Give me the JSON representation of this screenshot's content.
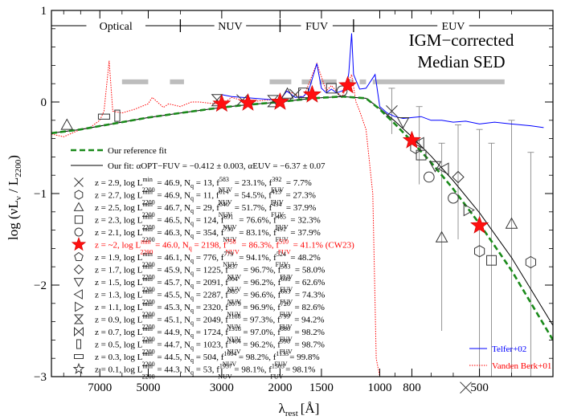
{
  "chart_data": {
    "type": "line",
    "title": "IGM−corrected Median SED",
    "title_lines": [
      "IGM−corrected",
      "Median SED"
    ],
    "xlabel": "λ",
    "xlabel_sub": "rest",
    "xlabel_unit": "[Å]",
    "ylabel": "log (νLν / L2200)",
    "x_scale": "log (reversed, wavelength decreasing to the right)",
    "xlim": [
      9800,
      300
    ],
    "ylim": [
      -3,
      1
    ],
    "grid": false,
    "x_ticks": [
      7000,
      5000,
      3000,
      2000,
      1500,
      1000,
      800,
      500
    ],
    "x_tick_labels": [
      "7000",
      "5000",
      "3000",
      "2000",
      "1500",
      "1000",
      "800",
      "500"
    ],
    "y_ticks": [
      1,
      0,
      -1,
      -2,
      -3
    ],
    "y_tick_labels": [
      "1",
      "0",
      "−1",
      "−2",
      "−3"
    ],
    "bands": [
      {
        "name": "Optical",
        "from": 9800,
        "to": 4000
      },
      {
        "name": "NUV",
        "from": 4000,
        "to": 2000
      },
      {
        "name": "FUV",
        "from": 2000,
        "to": 1200
      },
      {
        "name": "EUV",
        "from": 1200,
        "to": 300
      }
    ],
    "band_separators": [
      4000,
      2000,
      1200
    ],
    "legend_top": [
      {
        "label": "Our reference fit",
        "style": "dashed",
        "color": "#1a8a1a"
      },
      {
        "label": "Our fit: αOPT−FUV = −0.412 ± 0.003, αEUV = −6.37 ± 0.07",
        "style": "solid",
        "color": "#000000"
      }
    ],
    "legend_bottom": [
      {
        "label": "Telfer+02",
        "color": "#0000ff",
        "style": "solid"
      },
      {
        "label": "Vanden Berk+01",
        "color": "#ff0000",
        "style": "dotted"
      }
    ],
    "sample_rows": [
      {
        "marker": "cross",
        "z": "2.9",
        "logL": "46.9",
        "Nq": "13",
        "fnuv_sup": "583",
        "fnuv": "23.1%",
        "ffuv_sup": "392",
        "ffuv": "7.7%",
        "note": ""
      },
      {
        "marker": "hexagon",
        "z": "2.7",
        "logL": "46.9",
        "Nq": "11",
        "fnuv_sup": "614",
        "fnuv": "54.5%",
        "ffuv_sup": "413",
        "ffuv": "27.3%",
        "note": ""
      },
      {
        "marker": "triangle-up",
        "z": "2.5",
        "logL": "46.7",
        "Nq": "29",
        "fnuv_sup": "646",
        "fnuv": "51.7%",
        "ffuv_sup": "434",
        "ffuv": "37.9%",
        "note": ""
      },
      {
        "marker": "square",
        "z": "2.3",
        "logL": "46.5",
        "Nq": "124",
        "fnuv_sup": "691",
        "fnuv": "76.6%",
        "ffuv_sup": "465",
        "ffuv": "32.3%",
        "note": ""
      },
      {
        "marker": "circle",
        "z": "2.1",
        "logL": "46.3",
        "Nq": "354",
        "fnuv_sup": "730",
        "fnuv": "83.1%",
        "ffuv_sup": "491",
        "ffuv": "37.9%",
        "note": ""
      },
      {
        "marker": "star",
        "z": "~2",
        "logL": "46.0",
        "Nq": "2198",
        "fnuv_sup": "758",
        "fnuv": "86.3%",
        "ffuv_sup": "510",
        "ffuv": "41.1%",
        "note": "(CW23)",
        "highlight": true
      },
      {
        "marker": "pentagon",
        "z": "1.9",
        "logL": "46.1",
        "Nq": "776",
        "fnuv_sup": "779",
        "fnuv": "94.1%",
        "ffuv_sup": "524",
        "ffuv": "48.2%",
        "note": ""
      },
      {
        "marker": "diamond",
        "z": "1.7",
        "logL": "45.9",
        "Nq": "1225",
        "fnuv_sup": "837",
        "fnuv": "96.7%",
        "ffuv_sup": "563",
        "ffuv": "58.0%",
        "note": ""
      },
      {
        "marker": "triangle-down",
        "z": "1.5",
        "logL": "45.7",
        "Nq": "2091",
        "fnuv_sup": "904",
        "fnuv": "96.2%",
        "ffuv_sup": "608",
        "ffuv": "62.6%",
        "note": ""
      },
      {
        "marker": "triangle-left",
        "z": "1.3",
        "logL": "45.5",
        "Nq": "2287",
        "fnuv_sup": "985",
        "fnuv": "96.6%",
        "ffuv_sup": "663",
        "ffuv": "74.3%",
        "note": ""
      },
      {
        "marker": "triangle-right",
        "z": "1.1",
        "logL": "45.3",
        "Nq": "2320",
        "fnuv_sup": "1079",
        "fnuv": "96.9%",
        "ffuv_sup": "726",
        "ffuv": "82.6%",
        "note": ""
      },
      {
        "marker": "bowtie-v",
        "z": "0.9",
        "logL": "45.1",
        "Nq": "2049",
        "fnuv_sup": "1188",
        "fnuv": "97.3%",
        "ffuv_sup": "799",
        "ffuv": "94.2%",
        "note": ""
      },
      {
        "marker": "bowtie-h",
        "z": "0.7",
        "logL": "44.9",
        "Nq": "1724",
        "fnuv_sup": "1318",
        "fnuv": "97.0%",
        "ffuv_sup": "886",
        "ffuv": "98.2%",
        "note": ""
      },
      {
        "marker": "tall-rect",
        "z": "0.5",
        "logL": "44.7",
        "Nq": "1023",
        "fnuv_sup": "1484",
        "fnuv": "96.2%",
        "ffuv_sup": "998",
        "ffuv": "98.7%",
        "note": ""
      },
      {
        "marker": "wide-rect",
        "z": "0.3",
        "logL": "44.5",
        "Nq": "504",
        "fnuv_sup": "1684",
        "fnuv": "98.2%",
        "ffuv_sup": "1133",
        "ffuv": "99.8%",
        "note": ""
      },
      {
        "marker": "star-open",
        "z": "0.1",
        "logL": "44.3",
        "Nq": "53",
        "fnuv_sup": "1937",
        "fnuv": "98.1%",
        "ffuv_sup": "1303",
        "ffuv": "98.1%",
        "note": ""
      }
    ],
    "stat_prefix": {
      "z": "z = ",
      "logL": "log L",
      "logL_sub": "2200",
      "logL_sup": "min",
      "eq": " = ",
      "Nq": "N",
      "Nq_sub": "q",
      "f": "f",
      "f_nuv_sub": "NUV",
      "f_fuv_sub": "FUV"
    },
    "series": [
      {
        "name": "Our reference fit",
        "color": "#1a8a1a",
        "style": "dashed",
        "x": [
          9800,
          8000,
          6000,
          5000,
          4000,
          3000,
          2500,
          2000,
          1600,
          1300,
          1100,
          1000,
          900,
          800,
          700,
          600,
          500,
          400,
          300
        ],
        "y": [
          -0.34,
          -0.3,
          -0.22,
          -0.17,
          -0.12,
          -0.06,
          -0.03,
          0.0,
          0.04,
          0.06,
          0.04,
          -0.08,
          -0.24,
          -0.43,
          -0.66,
          -0.95,
          -1.33,
          -1.84,
          -2.6
        ]
      },
      {
        "name": "Our fit",
        "color": "#000000",
        "style": "solid",
        "x": [
          9800,
          8000,
          6000,
          5000,
          4000,
          3000,
          2500,
          2000,
          1600,
          1300,
          1100,
          1000,
          900,
          800,
          700,
          600,
          500,
          400,
          300
        ],
        "y": [
          -0.34,
          -0.3,
          -0.22,
          -0.17,
          -0.12,
          -0.06,
          -0.03,
          0.0,
          0.04,
          0.06,
          0.04,
          -0.07,
          -0.21,
          -0.38,
          -0.59,
          -0.86,
          -1.21,
          -1.7,
          -2.44
        ]
      },
      {
        "name": "Telfer+02",
        "color": "#0000ff",
        "style": "solid",
        "x": [
          3000,
          2800,
          2600,
          2400,
          2200,
          2000,
          1909,
          1800,
          1700,
          1640,
          1549,
          1500,
          1450,
          1400,
          1350,
          1300,
          1260,
          1240,
          1216,
          1200,
          1150,
          1100,
          1033,
          1000,
          950,
          900,
          850,
          800,
          750,
          700,
          650,
          600,
          550,
          500,
          450,
          400,
          350,
          320
        ],
        "y": [
          0.08,
          0.06,
          0.05,
          0.04,
          0.03,
          0.02,
          0.12,
          0.05,
          0.06,
          0.12,
          0.42,
          0.15,
          0.1,
          0.14,
          0.1,
          0.12,
          0.15,
          0.32,
          0.75,
          0.3,
          0.14,
          0.15,
          0.3,
          -0.05,
          -0.12,
          -0.16,
          -0.18,
          -0.17,
          -0.16,
          -0.2,
          -0.2,
          -0.22,
          -0.21,
          -0.24,
          -0.22,
          -0.24,
          -0.26,
          -0.28
        ]
      },
      {
        "name": "Vanden Berk+01",
        "color": "#ff0000",
        "style": "dotted",
        "x": [
          9800,
          9000,
          8000,
          7500,
          7000,
          6800,
          6563,
          6400,
          6000,
          5500,
          5007,
          4861,
          4500,
          4340,
          4000,
          3700,
          3500,
          3000,
          2800,
          2500,
          2200,
          2000,
          1909,
          1700,
          1549,
          1450,
          1400,
          1300,
          1250,
          1216,
          1180,
          1150,
          1100,
          1050,
          1025,
          1000
        ],
        "y": [
          -0.35,
          -0.38,
          -0.3,
          -0.28,
          -0.2,
          -0.1,
          0.45,
          -0.1,
          -0.12,
          -0.08,
          -0.02,
          0.05,
          -0.06,
          -0.02,
          -0.05,
          0.0,
          0.0,
          -0.03,
          0.05,
          0.0,
          0.02,
          0.03,
          0.12,
          0.05,
          0.42,
          0.12,
          0.18,
          0.05,
          0.2,
          0.3,
          0.0,
          -0.1,
          -0.3,
          -1.0,
          -2.8,
          -3.0
        ]
      }
    ],
    "gray_coverage_bars": [
      {
        "from": 6000,
        "to": 5000
      },
      {
        "from": 4300,
        "to": 3900
      },
      {
        "from": 2150,
        "to": 1850
      },
      {
        "from": 1720,
        "to": 1600
      },
      {
        "from": 1520,
        "to": 1350
      },
      {
        "from": 1260,
        "to": 1200
      },
      {
        "from": 1150,
        "to": 1100
      },
      {
        "from": 1050,
        "to": 420
      }
    ],
    "gray_bar_y": 0.22,
    "stars_cw23": {
      "x": [
        3000,
        2500,
        2000,
        1600,
        1250,
        800,
        500
      ],
      "y": [
        -0.02,
        -0.01,
        0.0,
        0.08,
        0.18,
        -0.42,
        -1.35
      ]
    },
    "extra_markers": [
      {
        "marker": "cross",
        "x": 920,
        "y": -0.1
      },
      {
        "marker": "cross",
        "x": 550,
        "y": -3.12
      },
      {
        "marker": "hexagon",
        "x": 780,
        "y": -0.5
      },
      {
        "marker": "hexagon",
        "x": 500,
        "y": -1.63
      },
      {
        "marker": "hexagon",
        "x": 350,
        "y": -1.75
      },
      {
        "marker": "triangle-up",
        "x": 650,
        "y": -1.48
      },
      {
        "marker": "triangle-up",
        "x": 400,
        "y": -1.33
      },
      {
        "marker": "square",
        "x": 750,
        "y": -0.58
      },
      {
        "marker": "square",
        "x": 460,
        "y": -1.73
      },
      {
        "marker": "circle",
        "x": 710,
        "y": -0.82
      },
      {
        "marker": "circle",
        "x": 600,
        "y": -1.05
      },
      {
        "marker": "diamond",
        "x": 580,
        "y": -0.82
      },
      {
        "marker": "triangle-down",
        "x": 850,
        "y": -0.22
      },
      {
        "marker": "triangle-down",
        "x": 680,
        "y": -0.7
      },
      {
        "marker": "triangle-left",
        "x": 760,
        "y": -0.45
      },
      {
        "marker": "triangle-left",
        "x": 640,
        "y": -0.73
      },
      {
        "marker": "triangle-right",
        "x": 540,
        "y": -1.18
      },
      {
        "marker": "bowtie-v",
        "x": 3100,
        "y": 0.02
      },
      {
        "marker": "bowtie-v",
        "x": 2100,
        "y": 0.01
      },
      {
        "marker": "tall-rect",
        "x": 6200,
        "y": -0.15
      },
      {
        "marker": "wide-rect",
        "x": 6800,
        "y": -0.16
      },
      {
        "marker": "triangle-up",
        "x": 8800,
        "y": -0.25
      },
      {
        "marker": "square",
        "x": 1400,
        "y": 0.15
      },
      {
        "marker": "square",
        "x": 1700,
        "y": 0.1
      },
      {
        "marker": "cross",
        "x": 2600,
        "y": 0.02
      },
      {
        "marker": "cross",
        "x": 1800,
        "y": 0.08
      },
      {
        "marker": "circle",
        "x": 1300,
        "y": 0.12
      },
      {
        "marker": "triangle-up",
        "x": 1900,
        "y": 0.09
      }
    ],
    "error_bars": [
      {
        "x": 920,
        "y": -0.1,
        "lo": -0.35,
        "hi": 0.15
      },
      {
        "x": 760,
        "y": -0.45,
        "lo": -0.9,
        "hi": -0.05
      },
      {
        "x": 650,
        "y": -1.48,
        "lo": -2.5,
        "hi": -0.45
      },
      {
        "x": 580,
        "y": -0.82,
        "lo": -1.5,
        "hi": -0.25
      },
      {
        "x": 500,
        "y": -1.63,
        "lo": -3.0,
        "hi": -0.3
      },
      {
        "x": 460,
        "y": -1.73,
        "lo": -3.0,
        "hi": -0.45
      },
      {
        "x": 400,
        "y": -1.33,
        "lo": -3.0,
        "hi": -0.2
      },
      {
        "x": 350,
        "y": -1.75,
        "lo": -3.0,
        "hi": -0.55
      }
    ]
  }
}
